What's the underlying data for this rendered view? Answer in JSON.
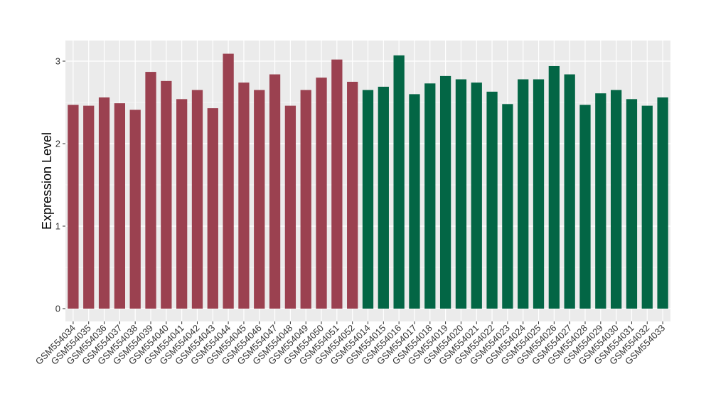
{
  "chart_data": {
    "type": "bar",
    "title": "",
    "xlabel": "",
    "ylabel": "Expression Level",
    "ylim": [
      0,
      3.25
    ],
    "yticks": [
      0,
      1,
      2,
      3
    ],
    "grid": true,
    "legend": "none",
    "colors": {
      "group_a": "#9b4150",
      "group_b": "#036645",
      "panel": "#ebebeb",
      "grid": "#ffffff"
    },
    "categories": [
      "GSM554034",
      "GSM554035",
      "GSM554036",
      "GSM554037",
      "GSM554038",
      "GSM554039",
      "GSM554040",
      "GSM554041",
      "GSM554042",
      "GSM554043",
      "GSM554044",
      "GSM554045",
      "GSM554046",
      "GSM554047",
      "GSM554048",
      "GSM554049",
      "GSM554050",
      "GSM554051",
      "GSM554052",
      "GSM554014",
      "GSM554015",
      "GSM554016",
      "GSM554017",
      "GSM554018",
      "GSM554019",
      "GSM554020",
      "GSM554021",
      "GSM554022",
      "GSM554023",
      "GSM554024",
      "GSM554025",
      "GSM554026",
      "GSM554027",
      "GSM554028",
      "GSM554029",
      "GSM554030",
      "GSM554031",
      "GSM554032",
      "GSM554033"
    ],
    "values": [
      2.47,
      2.46,
      2.56,
      2.49,
      2.41,
      2.87,
      2.76,
      2.54,
      2.65,
      2.43,
      3.09,
      2.74,
      2.65,
      2.84,
      2.46,
      2.65,
      2.8,
      3.02,
      2.75,
      2.65,
      2.69,
      3.07,
      2.6,
      2.73,
      2.82,
      2.78,
      2.74,
      2.63,
      2.48,
      2.78,
      2.78,
      2.94,
      2.84,
      2.47,
      2.61,
      2.65,
      2.54,
      2.46,
      2.56
    ],
    "groups": [
      "group_a",
      "group_a",
      "group_a",
      "group_a",
      "group_a",
      "group_a",
      "group_a",
      "group_a",
      "group_a",
      "group_a",
      "group_a",
      "group_a",
      "group_a",
      "group_a",
      "group_a",
      "group_a",
      "group_a",
      "group_a",
      "group_a",
      "group_b",
      "group_b",
      "group_b",
      "group_b",
      "group_b",
      "group_b",
      "group_b",
      "group_b",
      "group_b",
      "group_b",
      "group_b",
      "group_b",
      "group_b",
      "group_b",
      "group_b",
      "group_b",
      "group_b",
      "group_b",
      "group_b",
      "group_b"
    ]
  }
}
